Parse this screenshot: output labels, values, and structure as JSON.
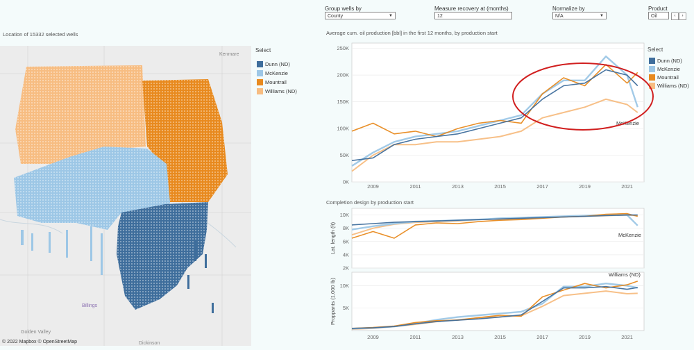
{
  "controls": {
    "group_label": "Group wells by",
    "group_value": "County",
    "measure_label": "Measure recovery at (months)",
    "measure_value": "12",
    "normalize_label": "Normalize by",
    "normalize_value": "N/A",
    "product_label": "Product",
    "product_value": "Oil"
  },
  "map": {
    "title": "Location of 15332 selected wells",
    "attribution": "© 2022 Mapbox  © OpenStreetMap",
    "places": [
      "Kenmare",
      "Billings",
      "Dickinson",
      "Golden Valley"
    ],
    "legend_title": "Select"
  },
  "colors": {
    "Dunn (ND)": "#3f6e9c",
    "McKenzie": "#9dc7e6",
    "Mountrail": "#e88a1f",
    "Williams (ND)": "#f7bd82",
    "highlight": "#d11f1f"
  },
  "legend": {
    "title": "Select",
    "items": [
      "Dunn (ND)",
      "McKenzie",
      "Mountrail",
      "Williams (ND)"
    ]
  },
  "chart_data": [
    {
      "type": "line",
      "title": "Average cum. oil production [bbl] in the first 12 months, by production start",
      "ylabel": "",
      "xlim": [
        2008,
        2021.8
      ],
      "ylim": [
        0,
        260000
      ],
      "yticks": [
        0,
        50000,
        100000,
        150000,
        200000,
        250000
      ],
      "ytick_labels": [
        "0K",
        "50K",
        "100K",
        "150K",
        "200K",
        "250K"
      ],
      "xticks": [
        2009,
        2011,
        2013,
        2015,
        2017,
        2019,
        2021
      ],
      "annotation": "McKenzie",
      "series": [
        {
          "name": "Dunn (ND)",
          "x": [
            2008,
            2009,
            2010,
            2011,
            2012,
            2013,
            2014,
            2015,
            2016,
            2017,
            2018,
            2019,
            2020,
            2021,
            2021.5
          ],
          "y": [
            40000,
            45000,
            70000,
            80000,
            85000,
            90000,
            100000,
            110000,
            120000,
            155000,
            180000,
            185000,
            210000,
            200000,
            180000
          ]
        },
        {
          "name": "McKenzie",
          "x": [
            2008,
            2009,
            2010,
            2011,
            2012,
            2013,
            2014,
            2015,
            2016,
            2017,
            2018,
            2019,
            2020,
            2021,
            2021.5
          ],
          "y": [
            30000,
            55000,
            75000,
            85000,
            90000,
            95000,
            105000,
            115000,
            125000,
            165000,
            190000,
            190000,
            235000,
            200000,
            140000
          ]
        },
        {
          "name": "Mountrail",
          "x": [
            2008,
            2009,
            2010,
            2011,
            2012,
            2013,
            2014,
            2015,
            2016,
            2017,
            2018,
            2019,
            2020,
            2021,
            2021.5
          ],
          "y": [
            95000,
            110000,
            90000,
            95000,
            85000,
            100000,
            110000,
            115000,
            110000,
            165000,
            195000,
            180000,
            220000,
            185000,
            205000
          ]
        },
        {
          "name": "Williams (ND)",
          "x": [
            2008,
            2009,
            2010,
            2011,
            2012,
            2013,
            2014,
            2015,
            2016,
            2017,
            2018,
            2019,
            2020,
            2021,
            2021.5
          ],
          "y": [
            20000,
            50000,
            70000,
            70000,
            75000,
            75000,
            80000,
            85000,
            95000,
            120000,
            130000,
            140000,
            155000,
            145000,
            130000
          ]
        }
      ]
    },
    {
      "type": "line",
      "title": "Completion design by production start",
      "ylabel": "Lat. length (ft)",
      "xlim": [
        2008,
        2021.8
      ],
      "ylim": [
        2000,
        11000
      ],
      "yticks": [
        2000,
        4000,
        6000,
        8000,
        10000
      ],
      "ytick_labels": [
        "2K",
        "4K",
        "6K",
        "8K",
        "10K"
      ],
      "annotation": "McKenzie",
      "series": [
        {
          "name": "Dunn (ND)",
          "x": [
            2008,
            2009,
            2010,
            2011,
            2012,
            2013,
            2014,
            2015,
            2016,
            2017,
            2018,
            2019,
            2020,
            2021,
            2021.5
          ],
          "y": [
            8500,
            8700,
            8900,
            9000,
            9100,
            9200,
            9300,
            9400,
            9500,
            9600,
            9700,
            9800,
            9900,
            10000,
            10000
          ]
        },
        {
          "name": "McKenzie",
          "x": [
            2008,
            2009,
            2010,
            2011,
            2012,
            2013,
            2014,
            2015,
            2016,
            2017,
            2018,
            2019,
            2020,
            2021,
            2021.5
          ],
          "y": [
            7800,
            8300,
            8700,
            9000,
            9100,
            9200,
            9300,
            9500,
            9600,
            9700,
            9800,
            9900,
            10000,
            10000,
            8400
          ]
        },
        {
          "name": "Mountrail",
          "x": [
            2008,
            2009,
            2010,
            2011,
            2012,
            2013,
            2014,
            2015,
            2016,
            2017,
            2018,
            2019,
            2020,
            2021,
            2021.5
          ],
          "y": [
            6500,
            7500,
            6500,
            8500,
            8800,
            8700,
            9000,
            9200,
            9300,
            9500,
            9700,
            9800,
            10100,
            10200,
            9800
          ]
        },
        {
          "name": "Williams (ND)",
          "x": [
            2008,
            2009,
            2010,
            2011,
            2012,
            2013,
            2014,
            2015,
            2016,
            2017,
            2018,
            2019,
            2020,
            2021,
            2021.5
          ],
          "y": [
            7000,
            8000,
            8600,
            8900,
            9000,
            9100,
            9300,
            9400,
            9500,
            9600,
            9700,
            9800,
            9900,
            10000,
            9900
          ]
        }
      ]
    },
    {
      "type": "line",
      "title": "",
      "ylabel": "Proppants (1,000 lb)",
      "xlim": [
        2008,
        2021.8
      ],
      "ylim": [
        0,
        13000
      ],
      "yticks": [
        5000,
        10000
      ],
      "ytick_labels": [
        "5K",
        "10K"
      ],
      "xticks": [
        2009,
        2011,
        2013,
        2015,
        2017,
        2019,
        2021
      ],
      "annotation": "Williams (ND)",
      "series": [
        {
          "name": "Dunn (ND)",
          "x": [
            2008,
            2009,
            2010,
            2011,
            2012,
            2013,
            2014,
            2015,
            2016,
            2017,
            2018,
            2019,
            2020,
            2021,
            2021.5
          ],
          "y": [
            500,
            600,
            900,
            1500,
            2000,
            2300,
            2600,
            3000,
            3500,
            6500,
            9500,
            9500,
            9800,
            9200,
            9600
          ]
        },
        {
          "name": "McKenzie",
          "x": [
            2008,
            2009,
            2010,
            2011,
            2012,
            2013,
            2014,
            2015,
            2016,
            2017,
            2018,
            2019,
            2020,
            2021,
            2021.5
          ],
          "y": [
            400,
            600,
            900,
            1600,
            2400,
            3000,
            3400,
            3800,
            4200,
            6000,
            9800,
            9800,
            10500,
            10000,
            9500
          ]
        },
        {
          "name": "Mountrail",
          "x": [
            2008,
            2009,
            2010,
            2011,
            2012,
            2013,
            2014,
            2015,
            2016,
            2017,
            2018,
            2019,
            2020,
            2021,
            2021.5
          ],
          "y": [
            500,
            700,
            1000,
            1800,
            2200,
            2300,
            2900,
            3400,
            3200,
            7500,
            9000,
            10500,
            9500,
            10200,
            11000
          ]
        },
        {
          "name": "Williams (ND)",
          "x": [
            2008,
            2009,
            2010,
            2011,
            2012,
            2013,
            2014,
            2015,
            2016,
            2017,
            2018,
            2019,
            2020,
            2021,
            2021.5
          ],
          "y": [
            300,
            500,
            900,
            1400,
            2000,
            2400,
            2800,
            3100,
            3300,
            5400,
            7800,
            8300,
            8800,
            8200,
            8300
          ]
        }
      ]
    }
  ]
}
